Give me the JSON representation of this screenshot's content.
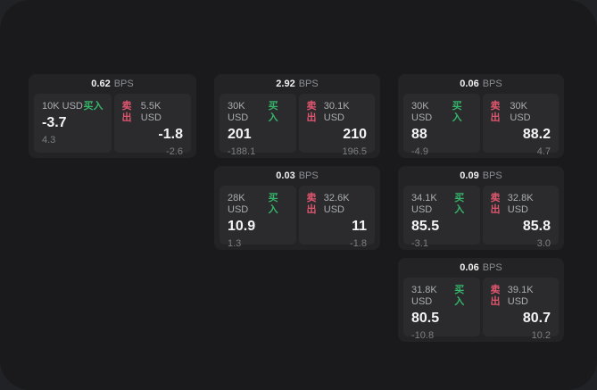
{
  "labels": {
    "buy": "买入",
    "sell": "卖出",
    "bps_unit": "BPS"
  },
  "colors": {
    "buy_green": "#35b569",
    "sell_red": "#e0566e",
    "window_bg": "#1a1a1c",
    "card_bg": "#232326",
    "panel_bg": "#2b2b2e"
  },
  "cards": [
    {
      "row": 1,
      "col": 1,
      "bps": "0.62",
      "buy": {
        "amount": "10K USD",
        "price": "-3.7",
        "change": "4.3"
      },
      "sell": {
        "amount": "5.5K USD",
        "price": "-1.8",
        "change": "-2.6"
      }
    },
    {
      "row": 1,
      "col": 2,
      "bps": "2.92",
      "buy": {
        "amount": "30K USD",
        "price": "201",
        "change": "-188.1"
      },
      "sell": {
        "amount": "30.1K USD",
        "price": "210",
        "change": "196.5"
      }
    },
    {
      "row": 1,
      "col": 3,
      "bps": "0.06",
      "buy": {
        "amount": "30K USD",
        "price": "88",
        "change": "-4.9"
      },
      "sell": {
        "amount": "30K USD",
        "price": "88.2",
        "change": "4.7"
      }
    },
    {
      "row": 2,
      "col": 2,
      "bps": "0.03",
      "buy": {
        "amount": "28K USD",
        "price": "10.9",
        "change": "1.3"
      },
      "sell": {
        "amount": "32.6K USD",
        "price": "11",
        "change": "-1.8"
      }
    },
    {
      "row": 2,
      "col": 3,
      "bps": "0.09",
      "buy": {
        "amount": "34.1K USD",
        "price": "85.5",
        "change": "-3.1"
      },
      "sell": {
        "amount": "32.8K USD",
        "price": "85.8",
        "change": "3.0"
      }
    },
    {
      "row": 3,
      "col": 3,
      "bps": "0.06",
      "buy": {
        "amount": "31.8K USD",
        "price": "80.5",
        "change": "-10.8"
      },
      "sell": {
        "amount": "39.1K USD",
        "price": "80.7",
        "change": "10.2"
      }
    }
  ]
}
